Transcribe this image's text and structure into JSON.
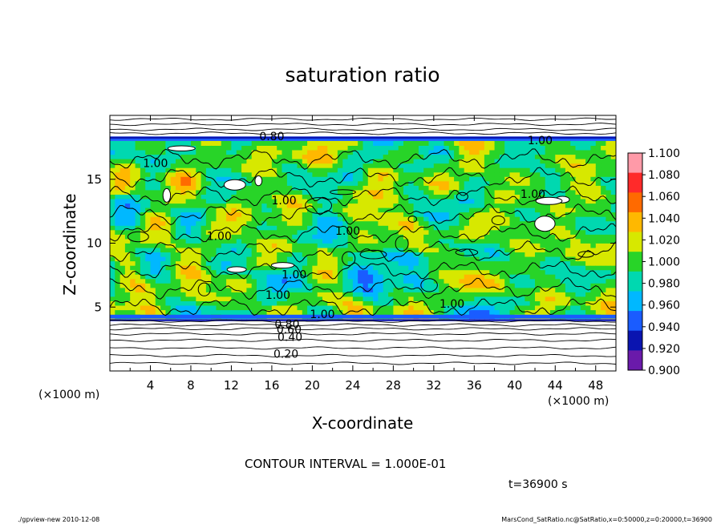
{
  "chart_data": {
    "type": "heatmap",
    "title": "saturation ratio",
    "xlabel": "X-coordinate",
    "ylabel": "Z-coordinate",
    "x_unit": "(×1000 m)",
    "y_unit": "(×1000 m)",
    "xlim": [
      0,
      50
    ],
    "ylim": [
      0,
      20
    ],
    "x_ticks": [
      4,
      8,
      12,
      16,
      20,
      24,
      28,
      32,
      36,
      40,
      44,
      48
    ],
    "y_ticks": [
      5,
      10,
      15
    ],
    "colorbar": {
      "min": 0.9,
      "max": 1.1,
      "levels": [
        "1.100",
        "1.080",
        "1.060",
        "1.040",
        "1.020",
        "1.000",
        "0.980",
        "0.960",
        "0.940",
        "0.920",
        "0.900"
      ],
      "colors": [
        "#ff9aa8",
        "#ff2a2a",
        "#ff6a00",
        "#ffb800",
        "#d7e800",
        "#28d428",
        "#00d8b0",
        "#00b8ff",
        "#1a5cff",
        "#0a14b0",
        "#6a1aaa"
      ]
    },
    "contour_labels": [
      {
        "text": "1.00",
        "x": 4.5,
        "z": 16.2
      },
      {
        "text": "1.00",
        "x": 17.2,
        "z": 13.3
      },
      {
        "text": "1.00",
        "x": 10.8,
        "z": 10.5
      },
      {
        "text": "1.00",
        "x": 23.5,
        "z": 10.9
      },
      {
        "text": "1.00",
        "x": 18.2,
        "z": 7.5
      },
      {
        "text": "1.00",
        "x": 16.6,
        "z": 5.9
      },
      {
        "text": "1.00",
        "x": 21.0,
        "z": 4.4
      },
      {
        "text": "1.00",
        "x": 33.8,
        "z": 5.2
      },
      {
        "text": "1.00",
        "x": 41.8,
        "z": 13.8
      },
      {
        "text": "1.00",
        "x": 42.5,
        "z": 18.0
      },
      {
        "text": "0.80",
        "x": 16.0,
        "z": 18.3
      },
      {
        "text": "0.80",
        "x": 17.5,
        "z": 3.6
      },
      {
        "text": "0.60",
        "x": 17.7,
        "z": 3.2
      },
      {
        "text": "0.40",
        "x": 17.8,
        "z": 2.6
      },
      {
        "text": "0.20",
        "x": 17.4,
        "z": 1.3
      }
    ],
    "contour_interval_text": "CONTOUR INTERVAL = 1.000E-01",
    "time_text": "t=36900  s"
  },
  "footer": {
    "left": "./gpview-new   2010-12-08",
    "right": "MarsCond_SatRatio.nc@SatRatio,x=0:50000,z=0:20000,t=36900"
  }
}
